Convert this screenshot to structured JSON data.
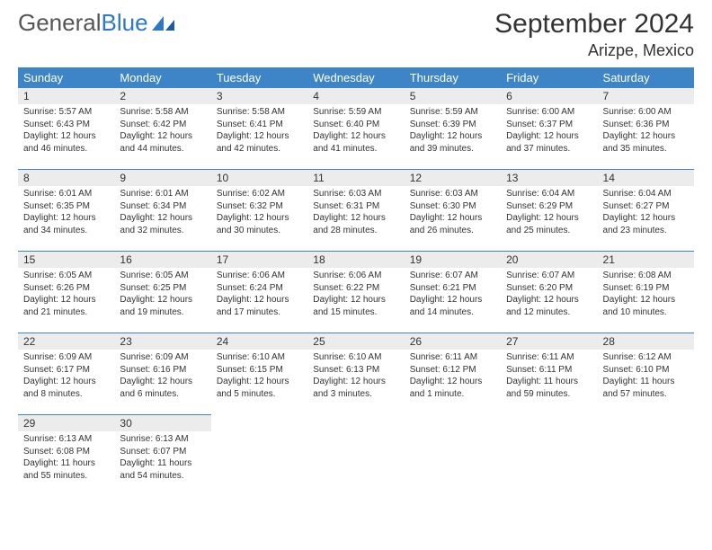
{
  "logo": {
    "general": "General",
    "blue": "Blue"
  },
  "title": "September 2024",
  "location": "Arizpe, Mexico",
  "header_color": "#3d85c6",
  "daynum_bg": "#ececec",
  "days_of_week": [
    "Sunday",
    "Monday",
    "Tuesday",
    "Wednesday",
    "Thursday",
    "Friday",
    "Saturday"
  ],
  "weeks": [
    [
      {
        "n": "1",
        "sunrise": "Sunrise: 5:57 AM",
        "sunset": "Sunset: 6:43 PM",
        "day1": "Daylight: 12 hours",
        "day2": "and 46 minutes."
      },
      {
        "n": "2",
        "sunrise": "Sunrise: 5:58 AM",
        "sunset": "Sunset: 6:42 PM",
        "day1": "Daylight: 12 hours",
        "day2": "and 44 minutes."
      },
      {
        "n": "3",
        "sunrise": "Sunrise: 5:58 AM",
        "sunset": "Sunset: 6:41 PM",
        "day1": "Daylight: 12 hours",
        "day2": "and 42 minutes."
      },
      {
        "n": "4",
        "sunrise": "Sunrise: 5:59 AM",
        "sunset": "Sunset: 6:40 PM",
        "day1": "Daylight: 12 hours",
        "day2": "and 41 minutes."
      },
      {
        "n": "5",
        "sunrise": "Sunrise: 5:59 AM",
        "sunset": "Sunset: 6:39 PM",
        "day1": "Daylight: 12 hours",
        "day2": "and 39 minutes."
      },
      {
        "n": "6",
        "sunrise": "Sunrise: 6:00 AM",
        "sunset": "Sunset: 6:37 PM",
        "day1": "Daylight: 12 hours",
        "day2": "and 37 minutes."
      },
      {
        "n": "7",
        "sunrise": "Sunrise: 6:00 AM",
        "sunset": "Sunset: 6:36 PM",
        "day1": "Daylight: 12 hours",
        "day2": "and 35 minutes."
      }
    ],
    [
      {
        "n": "8",
        "sunrise": "Sunrise: 6:01 AM",
        "sunset": "Sunset: 6:35 PM",
        "day1": "Daylight: 12 hours",
        "day2": "and 34 minutes."
      },
      {
        "n": "9",
        "sunrise": "Sunrise: 6:01 AM",
        "sunset": "Sunset: 6:34 PM",
        "day1": "Daylight: 12 hours",
        "day2": "and 32 minutes."
      },
      {
        "n": "10",
        "sunrise": "Sunrise: 6:02 AM",
        "sunset": "Sunset: 6:32 PM",
        "day1": "Daylight: 12 hours",
        "day2": "and 30 minutes."
      },
      {
        "n": "11",
        "sunrise": "Sunrise: 6:03 AM",
        "sunset": "Sunset: 6:31 PM",
        "day1": "Daylight: 12 hours",
        "day2": "and 28 minutes."
      },
      {
        "n": "12",
        "sunrise": "Sunrise: 6:03 AM",
        "sunset": "Sunset: 6:30 PM",
        "day1": "Daylight: 12 hours",
        "day2": "and 26 minutes."
      },
      {
        "n": "13",
        "sunrise": "Sunrise: 6:04 AM",
        "sunset": "Sunset: 6:29 PM",
        "day1": "Daylight: 12 hours",
        "day2": "and 25 minutes."
      },
      {
        "n": "14",
        "sunrise": "Sunrise: 6:04 AM",
        "sunset": "Sunset: 6:27 PM",
        "day1": "Daylight: 12 hours",
        "day2": "and 23 minutes."
      }
    ],
    [
      {
        "n": "15",
        "sunrise": "Sunrise: 6:05 AM",
        "sunset": "Sunset: 6:26 PM",
        "day1": "Daylight: 12 hours",
        "day2": "and 21 minutes."
      },
      {
        "n": "16",
        "sunrise": "Sunrise: 6:05 AM",
        "sunset": "Sunset: 6:25 PM",
        "day1": "Daylight: 12 hours",
        "day2": "and 19 minutes."
      },
      {
        "n": "17",
        "sunrise": "Sunrise: 6:06 AM",
        "sunset": "Sunset: 6:24 PM",
        "day1": "Daylight: 12 hours",
        "day2": "and 17 minutes."
      },
      {
        "n": "18",
        "sunrise": "Sunrise: 6:06 AM",
        "sunset": "Sunset: 6:22 PM",
        "day1": "Daylight: 12 hours",
        "day2": "and 15 minutes."
      },
      {
        "n": "19",
        "sunrise": "Sunrise: 6:07 AM",
        "sunset": "Sunset: 6:21 PM",
        "day1": "Daylight: 12 hours",
        "day2": "and 14 minutes."
      },
      {
        "n": "20",
        "sunrise": "Sunrise: 6:07 AM",
        "sunset": "Sunset: 6:20 PM",
        "day1": "Daylight: 12 hours",
        "day2": "and 12 minutes."
      },
      {
        "n": "21",
        "sunrise": "Sunrise: 6:08 AM",
        "sunset": "Sunset: 6:19 PM",
        "day1": "Daylight: 12 hours",
        "day2": "and 10 minutes."
      }
    ],
    [
      {
        "n": "22",
        "sunrise": "Sunrise: 6:09 AM",
        "sunset": "Sunset: 6:17 PM",
        "day1": "Daylight: 12 hours",
        "day2": "and 8 minutes."
      },
      {
        "n": "23",
        "sunrise": "Sunrise: 6:09 AM",
        "sunset": "Sunset: 6:16 PM",
        "day1": "Daylight: 12 hours",
        "day2": "and 6 minutes."
      },
      {
        "n": "24",
        "sunrise": "Sunrise: 6:10 AM",
        "sunset": "Sunset: 6:15 PM",
        "day1": "Daylight: 12 hours",
        "day2": "and 5 minutes."
      },
      {
        "n": "25",
        "sunrise": "Sunrise: 6:10 AM",
        "sunset": "Sunset: 6:13 PM",
        "day1": "Daylight: 12 hours",
        "day2": "and 3 minutes."
      },
      {
        "n": "26",
        "sunrise": "Sunrise: 6:11 AM",
        "sunset": "Sunset: 6:12 PM",
        "day1": "Daylight: 12 hours",
        "day2": "and 1 minute."
      },
      {
        "n": "27",
        "sunrise": "Sunrise: 6:11 AM",
        "sunset": "Sunset: 6:11 PM",
        "day1": "Daylight: 11 hours",
        "day2": "and 59 minutes."
      },
      {
        "n": "28",
        "sunrise": "Sunrise: 6:12 AM",
        "sunset": "Sunset: 6:10 PM",
        "day1": "Daylight: 11 hours",
        "day2": "and 57 minutes."
      }
    ],
    [
      {
        "n": "29",
        "sunrise": "Sunrise: 6:13 AM",
        "sunset": "Sunset: 6:08 PM",
        "day1": "Daylight: 11 hours",
        "day2": "and 55 minutes."
      },
      {
        "n": "30",
        "sunrise": "Sunrise: 6:13 AM",
        "sunset": "Sunset: 6:07 PM",
        "day1": "Daylight: 11 hours",
        "day2": "and 54 minutes."
      },
      null,
      null,
      null,
      null,
      null
    ]
  ]
}
